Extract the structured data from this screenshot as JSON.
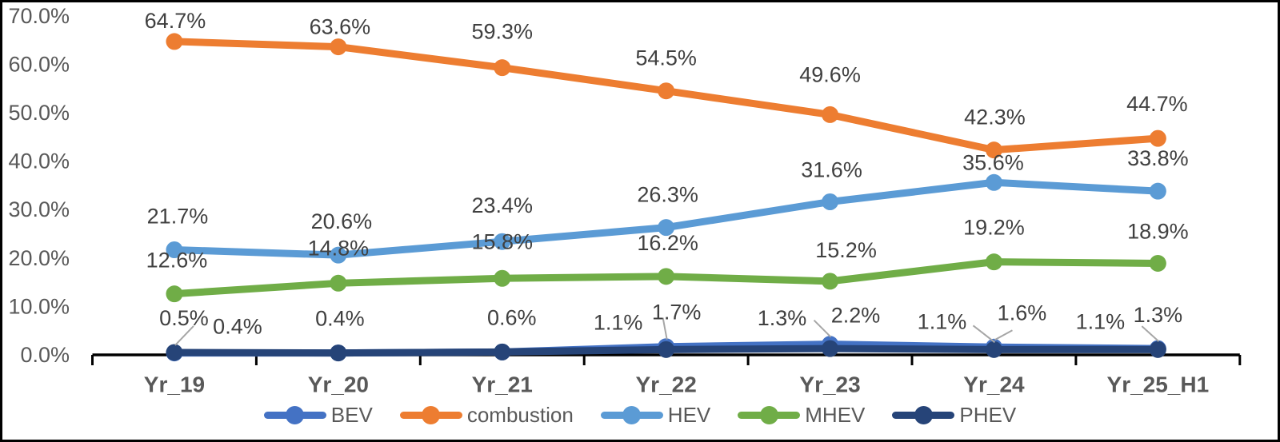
{
  "chart_data": {
    "type": "line",
    "title": "",
    "xlabel": "",
    "ylabel": "",
    "grid": false,
    "categories": [
      "Yr_19",
      "Yr_20",
      "Yr_21",
      "Yr_22",
      "Yr_23",
      "Yr_24",
      "Yr_25_H1"
    ],
    "y_axis": {
      "min": 0,
      "max": 70,
      "step": 10,
      "tick_labels": [
        "0.0%",
        "10.0%",
        "20.0%",
        "30.0%",
        "40.0%",
        "50.0%",
        "60.0%",
        "70.0%"
      ]
    },
    "series": [
      {
        "name": "BEV",
        "color": "#4472C4",
        "values": [
          0.4,
          0.4,
          0.6,
          1.7,
          2.2,
          1.6,
          1.3
        ],
        "labels": [
          {
            "text": "0.4%",
            "dx": 79,
            "dy": -33
          },
          {
            "text": "0.4%",
            "dx": 2,
            "dy": -43
          },
          {
            "text": "0.6%",
            "dx": 12,
            "dy": -43
          },
          {
            "text": "1.7%",
            "dx": 13,
            "dy": -43,
            "leader": [
              -4,
              -36
            ]
          },
          {
            "text": "2.2%",
            "dx": 32,
            "dy": -36,
            "leader": [
              -20,
              -30
            ]
          },
          {
            "text": "1.6%",
            "dx": 35,
            "dy": -43,
            "leader": [
              23,
              -21
            ]
          },
          {
            "text": "1.3%",
            "dx": 0,
            "dy": -42,
            "leader": [
              -20,
              -28
            ]
          }
        ]
      },
      {
        "name": "combustion",
        "color": "#ED7D31",
        "values": [
          64.7,
          63.6,
          59.3,
          54.5,
          49.6,
          42.3,
          44.7
        ],
        "labels": [
          {
            "text": "64.7%",
            "dx": 1,
            "dy": -26
          },
          {
            "text": "63.6%",
            "dx": 2,
            "dy": -25
          },
          {
            "text": "59.3%",
            "dx": 0,
            "dy": -45
          },
          {
            "text": "54.5%",
            "dx": 0,
            "dy": -41
          },
          {
            "text": "49.6%",
            "dx": 0,
            "dy": -50
          },
          {
            "text": "42.3%",
            "dx": 1,
            "dy": -41
          },
          {
            "text": "44.7%",
            "dx": -1,
            "dy": -43
          }
        ]
      },
      {
        "name": "HEV",
        "color": "#5B9BD5",
        "values": [
          21.7,
          20.6,
          23.4,
          26.3,
          31.6,
          35.6,
          33.8
        ],
        "labels": [
          {
            "text": "21.7%",
            "dx": 4,
            "dy": -42
          },
          {
            "text": "20.6%",
            "dx": 4,
            "dy": -42
          },
          {
            "text": "23.4%",
            "dx": 0,
            "dy": -45
          },
          {
            "text": "26.3%",
            "dx": 2,
            "dy": -41
          },
          {
            "text": "31.6%",
            "dx": 2,
            "dy": -40
          },
          {
            "text": "35.6%",
            "dx": -1,
            "dy": -25
          },
          {
            "text": "33.8%",
            "dx": 0,
            "dy": -41
          }
        ]
      },
      {
        "name": "MHEV",
        "color": "#70AD47",
        "values": [
          12.6,
          14.8,
          15.8,
          16.2,
          15.2,
          19.2,
          18.9
        ],
        "labels": [
          {
            "text": "12.6%",
            "dx": 3,
            "dy": -42
          },
          {
            "text": "14.8%",
            "dx": 0,
            "dy": -44
          },
          {
            "text": "15.8%",
            "dx": 0,
            "dy": -46
          },
          {
            "text": "16.2%",
            "dx": 2,
            "dy": -42
          },
          {
            "text": "15.2%",
            "dx": 20,
            "dy": -39
          },
          {
            "text": "19.2%",
            "dx": 0,
            "dy": -43
          },
          {
            "text": "18.9%",
            "dx": 0,
            "dy": -40
          }
        ]
      },
      {
        "name": "PHEV",
        "color": "#264478",
        "values": [
          0.5,
          0.4,
          0.6,
          1.1,
          1.3,
          1.1,
          1.1
        ],
        "labels": [
          {
            "text": "0.5%",
            "dx": 12,
            "dy": -43,
            "leader": [
              24,
              -33
            ]
          },
          {
            "text": "0.4%",
            "show": false
          },
          {
            "text": "0.6%",
            "show": false
          },
          {
            "text": "1.1%",
            "dx": -60,
            "dy": -34
          },
          {
            "text": "1.3%",
            "dx": -60,
            "dy": -38
          },
          {
            "text": "1.1%",
            "dx": -65,
            "dy": -35,
            "leader": [
              -26,
              -30
            ]
          },
          {
            "text": "1.1%",
            "dx": -72,
            "dy": -35
          }
        ]
      }
    ],
    "legend": {
      "position": "bottom",
      "entries": [
        "BEV",
        "combustion",
        "HEV",
        "MHEV",
        "PHEV"
      ]
    },
    "colors": {
      "axis_line": "#000000",
      "axis_labels": "#595959",
      "data_labels": "#404040",
      "leader_line": "#A6A6A6",
      "frame_border": "#000000",
      "background": "#FFFFFF"
    }
  }
}
